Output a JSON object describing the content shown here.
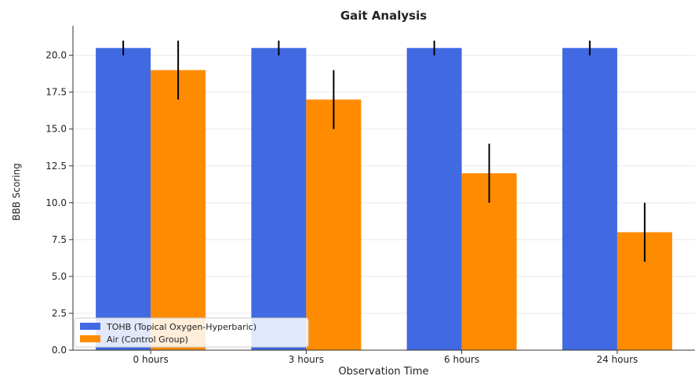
{
  "chart_data": {
    "type": "bar",
    "title": "Gait Analysis",
    "xlabel": "Observation Time",
    "ylabel": "BBB Scoring",
    "categories": [
      "0 hours",
      "3 hours",
      "6 hours",
      "24 hours"
    ],
    "ylim": [
      0,
      22
    ],
    "yticks": [
      "0.0",
      "2.5",
      "5.0",
      "7.5",
      "10.0",
      "12.5",
      "15.0",
      "17.5",
      "20.0"
    ],
    "grid": true,
    "legend_position": "lower-left",
    "series": [
      {
        "name": "TOHB (Topical Oxygen-Hyperbaric)",
        "color": "#4169e1",
        "values": [
          20.5,
          20.5,
          20.5,
          20.5
        ],
        "errors": [
          0.5,
          0.5,
          0.5,
          0.5
        ]
      },
      {
        "name": "Air (Control Group)",
        "color": "#ff8c00",
        "values": [
          19,
          17,
          12,
          8
        ],
        "errors": [
          2,
          2,
          2,
          2
        ]
      }
    ]
  }
}
